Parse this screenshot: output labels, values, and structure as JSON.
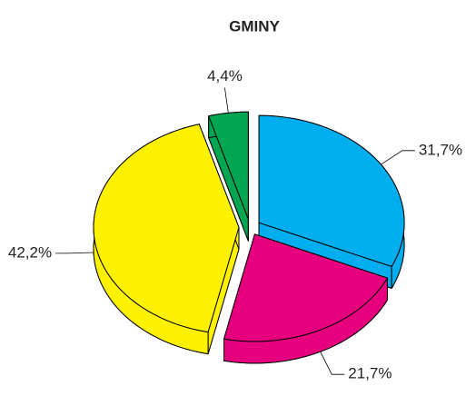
{
  "chart_data": {
    "type": "pie",
    "title": "GMINY",
    "categories": [
      null,
      null,
      null,
      null
    ],
    "values": [
      31.7,
      21.7,
      42.2,
      4.4
    ],
    "value_labels": [
      "31,7%",
      "21,7%",
      "42,2%",
      "4,4%"
    ],
    "colors": [
      "#00aeef",
      "#e6007e",
      "#fff200",
      "#00a651"
    ]
  }
}
